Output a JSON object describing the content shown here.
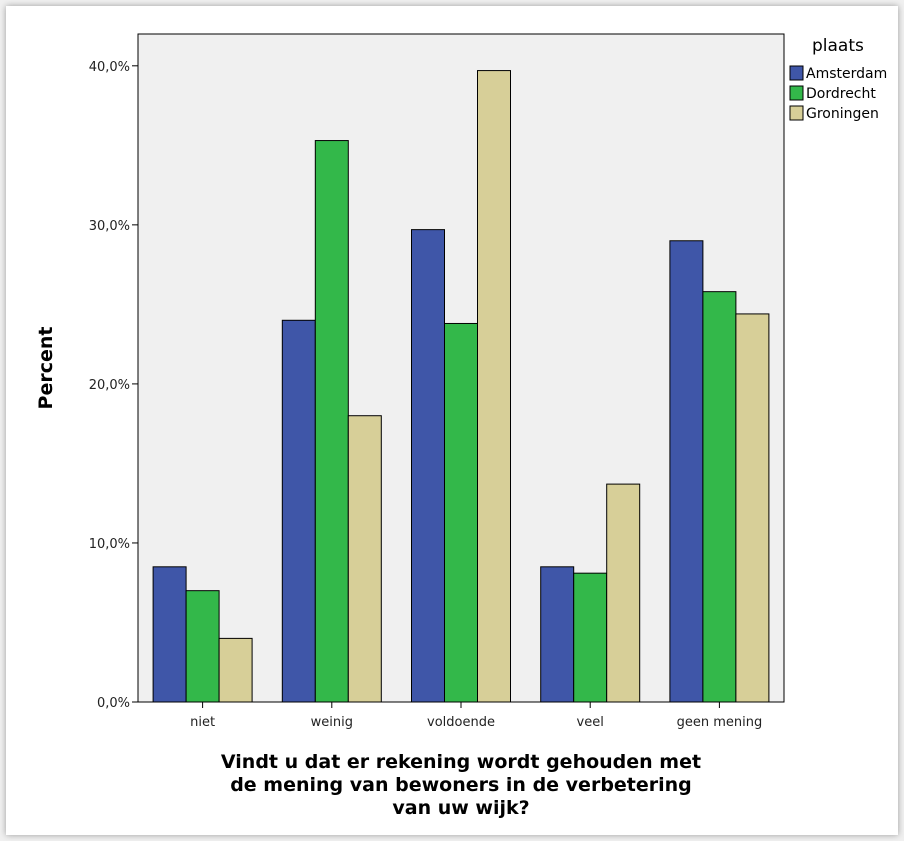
{
  "chart_data": {
    "type": "bar",
    "title": "",
    "xlabel_lines": [
      "Vindt u dat er rekening wordt gehouden met",
      "de mening van bewoners in de verbetering",
      "van uw wijk?"
    ],
    "ylabel": "Percent",
    "categories": [
      "niet",
      "weinig",
      "voldoende",
      "veel",
      "geen mening"
    ],
    "series": [
      {
        "name": "Amsterdam",
        "color": "#3f56a8",
        "values": [
          8.5,
          24.0,
          29.7,
          8.5,
          29.0
        ]
      },
      {
        "name": "Dordrecht",
        "color": "#33b84a",
        "values": [
          7.0,
          35.3,
          23.8,
          8.1,
          25.8
        ]
      },
      {
        "name": "Groningen",
        "color": "#d7cf98",
        "values": [
          4.0,
          18.0,
          39.7,
          13.7,
          24.4
        ]
      }
    ],
    "ylim": [
      0,
      42
    ],
    "yticks": [
      0,
      10,
      20,
      30,
      40
    ],
    "ytick_labels": [
      "0,0%",
      "10,0%",
      "20,0%",
      "30,0%",
      "40,0%"
    ],
    "legend_title": "plaats",
    "legend_position": "top-right",
    "plot_background": "#f0f0f0",
    "grid": false
  }
}
